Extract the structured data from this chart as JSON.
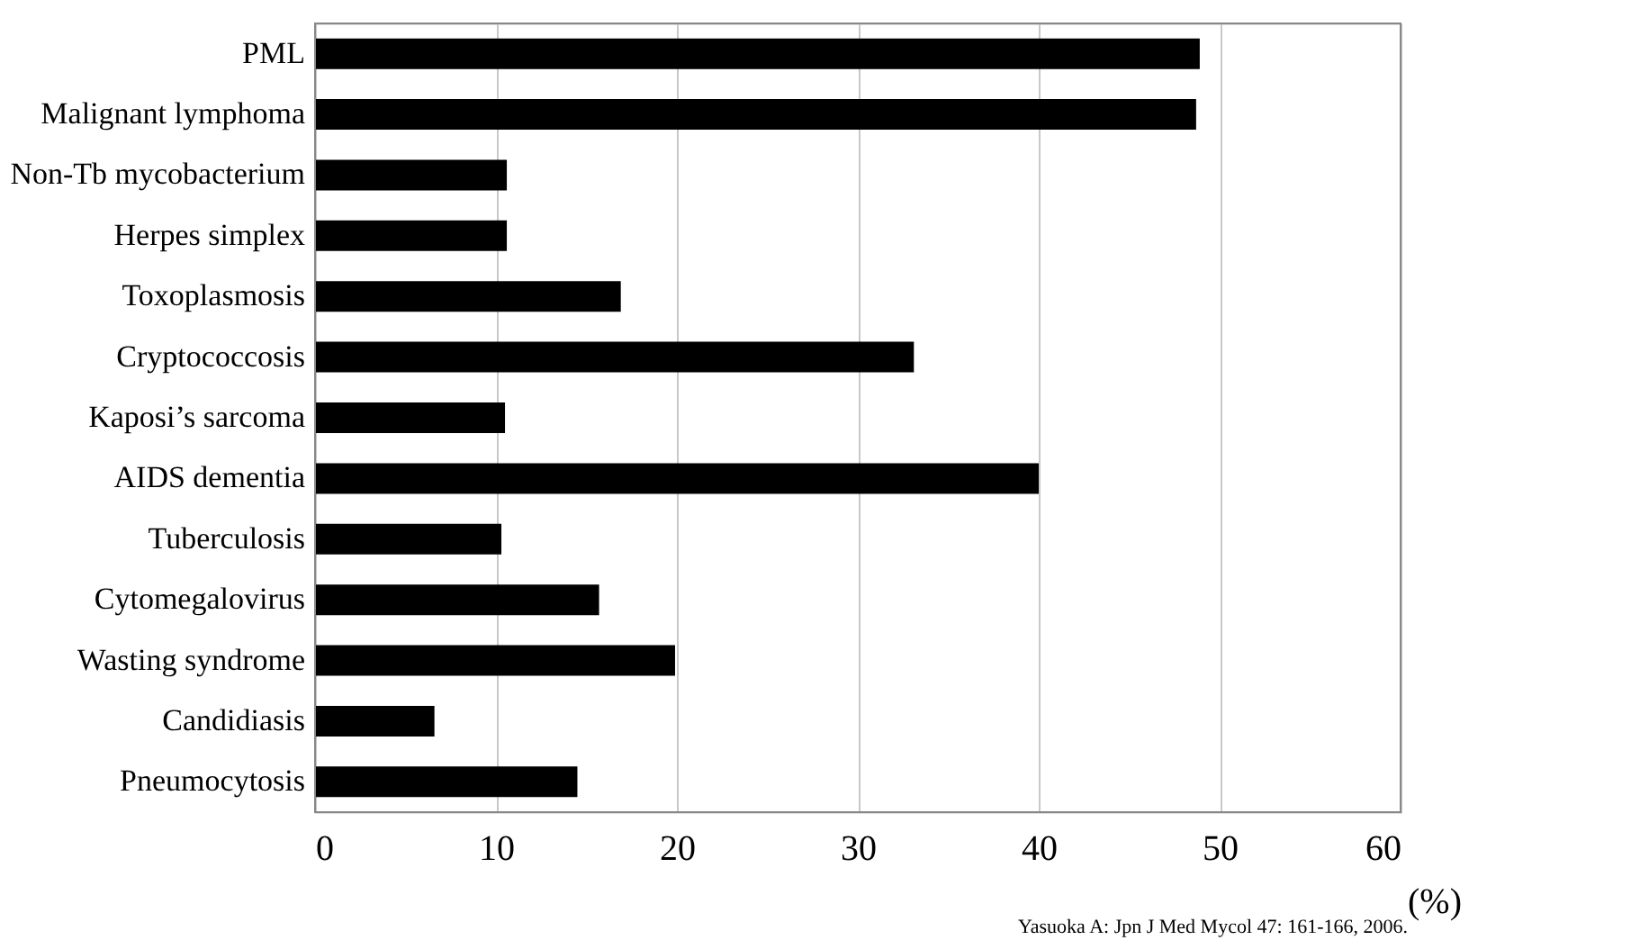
{
  "chart_data": {
    "type": "bar",
    "orientation": "horizontal",
    "categories": [
      "PML",
      "Malignant lymphoma",
      "Non-Tb mycobacterium",
      "Herpes simplex",
      "Toxoplasmosis",
      "Cryptococcosis",
      "Kaposi’s sarcoma",
      "AIDS dementia",
      "Tuberculosis",
      "Cytomegalovirus",
      "Wasting syndrome",
      "Candidiasis",
      "Pneumocytosis"
    ],
    "values": [
      48.9,
      48.7,
      10.6,
      10.6,
      16.9,
      33.1,
      10.5,
      40.0,
      10.3,
      15.7,
      19.9,
      6.6,
      14.5
    ],
    "color": "#000000",
    "xlim": [
      0,
      60
    ],
    "xticks": [
      0,
      10,
      20,
      30,
      40,
      50,
      60
    ],
    "grid": "x",
    "xlabel": "(%)",
    "annotations": [
      "Yasuoka A: Jpn J Med Mycol 47: 161-166, 2006."
    ]
  }
}
